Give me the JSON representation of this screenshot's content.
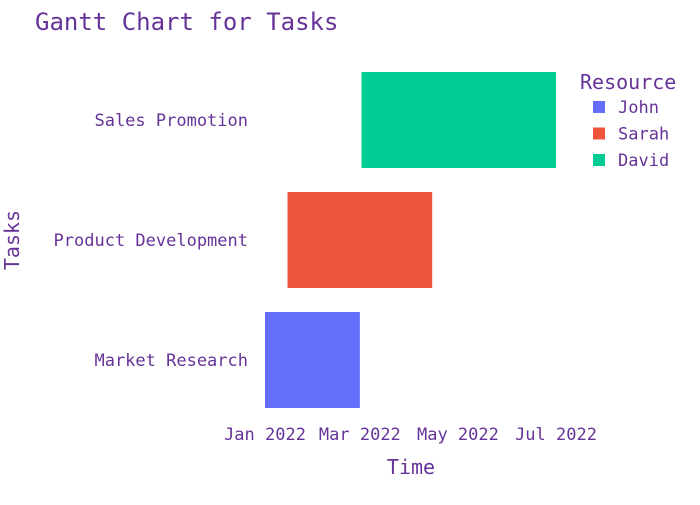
{
  "chart_data": {
    "type": "gantt",
    "title": "Gantt Chart for Tasks",
    "xlabel": "Time",
    "ylabel": "Tasks",
    "text_color": "#663399",
    "x_tick_labels": [
      "Jan 2022",
      "Mar 2022",
      "May 2022",
      "Jul 2022"
    ],
    "x_ticks": [
      "2022-01-01",
      "2022-03-01",
      "2022-05-01",
      "2022-07-01"
    ],
    "categories": [
      "Market Research",
      "Product Development",
      "Sales Promotion"
    ],
    "tasks": [
      {
        "task": "Market Research",
        "start": "2022-01-01",
        "end": "2022-03-01",
        "resource": "John"
      },
      {
        "task": "Product Development",
        "start": "2022-01-15",
        "end": "2022-04-15",
        "resource": "Sarah"
      },
      {
        "task": "Sales Promotion",
        "start": "2022-03-02",
        "end": "2022-07-01",
        "resource": "David"
      }
    ],
    "legend": {
      "title": "Resource",
      "position": "top-right",
      "items": [
        {
          "name": "John",
          "color": "#636efa"
        },
        {
          "name": "Sarah",
          "color": "#ef553b"
        },
        {
          "name": "David",
          "color": "#00cc96"
        }
      ]
    },
    "grid": false
  }
}
